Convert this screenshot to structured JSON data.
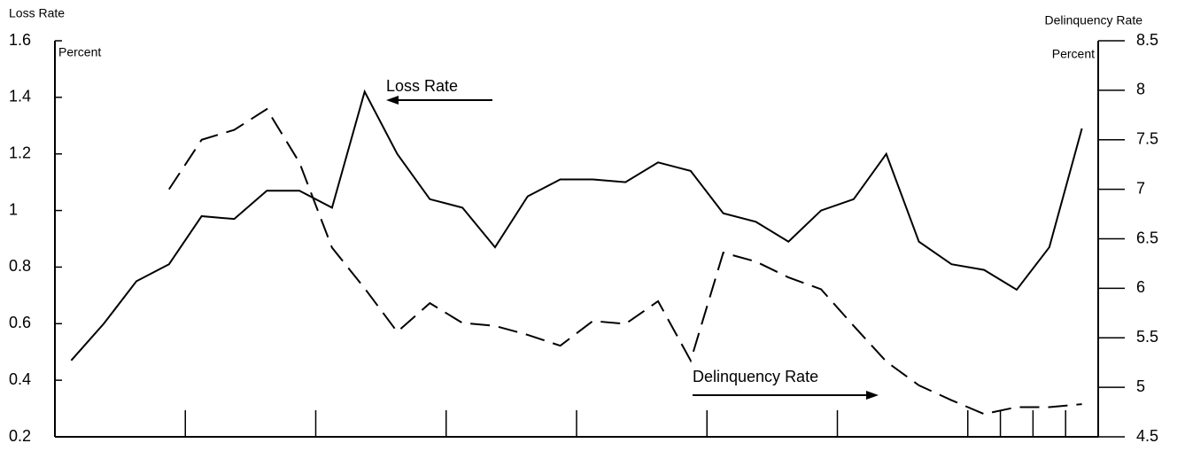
{
  "chart_data": {
    "type": "line",
    "y_label": "Loss Rate",
    "y2_label": "Delinquency Rate",
    "y_unit": "Percent",
    "y2_unit": "Percent",
    "annotations": [
      "Loss Rate",
      "Delinquency Rate"
    ],
    "x": [
      0,
      1,
      2,
      3,
      4,
      5,
      6,
      7,
      8,
      9,
      10,
      11,
      12,
      13,
      14,
      15,
      16,
      17,
      18,
      19,
      20,
      21,
      22,
      23,
      24,
      25,
      26,
      27,
      28,
      29,
      30,
      31
    ],
    "xlim": [
      -0.5,
      31.5
    ],
    "xticks": [
      3.5,
      7.5,
      11.5,
      15.5,
      19.5,
      23.5,
      27.5,
      28.5,
      29.5,
      30.5,
      31.5
    ],
    "ylim": [
      0.2,
      1.6
    ],
    "yticks": [
      0.2,
      0.4,
      0.6,
      0.8,
      1,
      1.2,
      1.4,
      1.6
    ],
    "y2lim": [
      4.5,
      8.5
    ],
    "y2ticks": [
      4.5,
      5,
      5.5,
      6,
      6.5,
      7,
      7.5,
      8,
      8.5
    ],
    "series": [
      {
        "name": "Loss Rate",
        "color": "#000000",
        "dash": false,
        "values": [
          0.47,
          0.6,
          0.75,
          0.81,
          0.98,
          0.97,
          1.07,
          1.07,
          1.01,
          1.42,
          1.2,
          1.04,
          1.01,
          0.87,
          1.05,
          1.11,
          1.11,
          1.1,
          1.17,
          1.14,
          0.99,
          0.96,
          0.89,
          1.0,
          1.04,
          1.2,
          0.89,
          0.81,
          0.79,
          0.72,
          0.87,
          1.29
        ]
      },
      {
        "name": "Delinquency Rate",
        "color": "#000000",
        "dash": true,
        "axis": "y2",
        "values": [
          null,
          null,
          null,
          7.0,
          7.5,
          7.6,
          7.81,
          7.27,
          6.41,
          6.0,
          5.56,
          5.85,
          5.65,
          5.62,
          5.53,
          5.42,
          5.67,
          5.64,
          5.87,
          5.27,
          6.36,
          6.27,
          6.11,
          5.99,
          5.62,
          5.26,
          5.02,
          4.87,
          4.73,
          4.8,
          4.8,
          4.83
        ]
      }
    ]
  }
}
